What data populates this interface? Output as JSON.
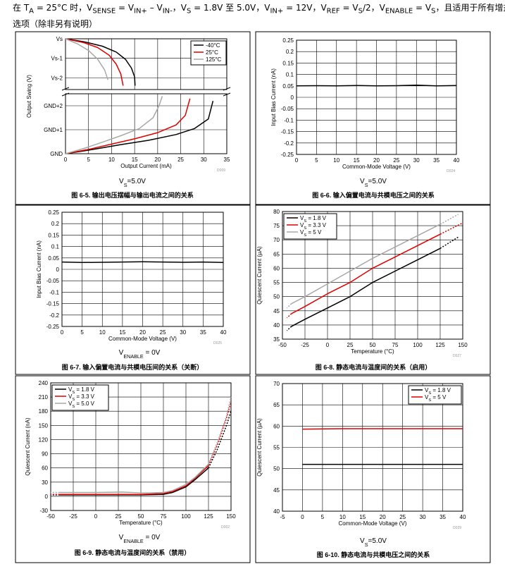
{
  "header": {
    "line1_main": "在 T",
    "line1_main_sub": "A",
    "line1_a": " = 25°C 时，V",
    "line1_a_sub": "SENSE",
    "line1_b": " = V",
    "line1_b_sub": "IN+",
    "line1_c": " – V",
    "line1_c_sub": "IN-",
    "line1_d": "，V",
    "line1_d_sub": "S",
    "line1_e": " = 1.8V 至 5.0V，V",
    "line1_e_sub": "IN+",
    "line1_f": " = 12V，V",
    "line1_f_sub": "REF",
    "line1_g": " = V",
    "line1_g_sub": "S",
    "line1_h": "/2，V",
    "line1_h_sub": "ENABLE",
    "line1_i": " = V",
    "line1_i_sub": "S",
    "line1_j": "，且适用于所有增益",
    "line2": "选项（除非另有说明）"
  },
  "colors": {
    "black": "#000000",
    "red": "#e00000",
    "gray": "#a8a8a8",
    "grid": "#000000"
  },
  "chart_data": [
    {
      "id": "fig-6-5",
      "type": "line",
      "caption": "图 6-5. 输出电压摆幅与输出电流之间的关系",
      "condition": "VS=5.0V",
      "condition_main": "V",
      "condition_sub": "S",
      "condition_rest": "=5.0V",
      "code": "D009",
      "xlabel": "Output Current (mA)",
      "ylabel": "Output Swing (V)",
      "xlim": [
        0,
        35
      ],
      "x_ticks": [
        0,
        5,
        10,
        15,
        20,
        25,
        30,
        35
      ],
      "upper_ticks": [
        "Vs",
        "Vs-1",
        "Vs-2"
      ],
      "lower_ticks": [
        "GND+2",
        "GND+1",
        "GND"
      ],
      "legend": [
        "-40°C",
        "25°C",
        "125°C"
      ],
      "series": [
        {
          "name": "-40°C",
          "color": "black",
          "upper": [
            [
              0,
              0
            ],
            [
              4,
              -0.15
            ],
            [
              8,
              -0.38
            ],
            [
              11,
              -0.68
            ],
            [
              13,
              -1.05
            ],
            [
              14.3,
              -1.5
            ],
            [
              15,
              -1.95
            ],
            [
              15.1,
              -2.4
            ]
          ],
          "lower": [
            [
              0,
              0
            ],
            [
              6,
              0.18
            ],
            [
              12,
              0.38
            ],
            [
              18,
              0.56
            ],
            [
              24,
              0.8
            ],
            [
              28,
              1.05
            ],
            [
              31,
              1.45
            ],
            [
              32,
              2.2
            ]
          ]
        },
        {
          "name": "25°C",
          "color": "red",
          "upper": [
            [
              0,
              0
            ],
            [
              4,
              -0.2
            ],
            [
              7,
              -0.45
            ],
            [
              9.5,
              -0.85
            ],
            [
              11,
              -1.3
            ],
            [
              12,
              -1.8
            ],
            [
              12.5,
              -2.4
            ]
          ],
          "lower": [
            [
              0,
              0
            ],
            [
              5,
              0.18
            ],
            [
              10,
              0.4
            ],
            [
              15,
              0.62
            ],
            [
              20,
              0.88
            ],
            [
              24,
              1.2
            ],
            [
              26,
              1.6
            ],
            [
              27,
              2.3
            ]
          ]
        },
        {
          "name": "125°C",
          "color": "gray",
          "upper": [
            [
              0,
              0
            ],
            [
              2.5,
              -0.25
            ],
            [
              5,
              -0.6
            ],
            [
              7,
              -1.05
            ],
            [
              8.5,
              -1.6
            ],
            [
              9.2,
              -2.1
            ]
          ],
          "lower": [
            [
              0,
              0
            ],
            [
              4,
              0.22
            ],
            [
              8,
              0.48
            ],
            [
              12,
              0.75
            ],
            [
              16,
              1.05
            ],
            [
              19,
              1.5
            ],
            [
              20.3,
              2
            ],
            [
              21,
              2.4
            ]
          ]
        }
      ]
    },
    {
      "id": "fig-6-6",
      "type": "line",
      "caption": "图 6-6. 输入偏置电流与共模电压之间的关系",
      "condition": "VS=5.0V",
      "condition_main": "V",
      "condition_sub": "S",
      "condition_rest": "=5.0V",
      "code": "D024",
      "xlabel": "Common-Mode Voltage (V)",
      "ylabel": "Input Bias Current (nA)",
      "xlim": [
        0,
        40
      ],
      "ylim": [
        -0.25,
        0.25
      ],
      "x_ticks": [
        0,
        5,
        10,
        15,
        20,
        25,
        30,
        35,
        40
      ],
      "y_ticks": [
        0.25,
        0.2,
        0.15,
        0.1,
        0.05,
        0,
        -0.05,
        -0.1,
        -0.15,
        -0.2,
        -0.25
      ],
      "series": [
        {
          "name": "IB",
          "color": "black",
          "points": [
            [
              0,
              0.05
            ],
            [
              5,
              0.051
            ],
            [
              10,
              0.05
            ],
            [
              15,
              0.052
            ],
            [
              20,
              0.05
            ],
            [
              25,
              0.051
            ],
            [
              30,
              0.053
            ],
            [
              35,
              0.05
            ],
            [
              40,
              0.052
            ]
          ]
        }
      ]
    },
    {
      "id": "fig-6-7",
      "type": "line",
      "caption": "图 6-7. 输入偏置电流与共模电压间的关系（关断）",
      "condition": "VENABLE = 0V",
      "condition_main": "V",
      "condition_sub": "ENABLE",
      "condition_rest": " = 0V",
      "code": "D025",
      "xlabel": "Common-Mode Voltage (V)",
      "ylabel": "Input Bias Current (nA)",
      "xlim": [
        0,
        40
      ],
      "ylim": [
        -0.25,
        0.25
      ],
      "x_ticks": [
        0,
        5,
        10,
        15,
        20,
        25,
        30,
        35,
        40
      ],
      "y_ticks": [
        0.25,
        0.2,
        0.15,
        0.1,
        0.05,
        0,
        -0.05,
        -0.1,
        -0.15,
        -0.2,
        -0.25
      ],
      "series": [
        {
          "name": "IB",
          "color": "black",
          "points": [
            [
              0,
              0.032
            ],
            [
              5,
              0.03
            ],
            [
              10,
              0.031
            ],
            [
              15,
              0.032
            ],
            [
              20,
              0.033
            ],
            [
              25,
              0.032
            ],
            [
              30,
              0.031
            ],
            [
              35,
              0.032
            ],
            [
              40,
              0.03
            ]
          ]
        }
      ]
    },
    {
      "id": "fig-6-8",
      "type": "line",
      "caption": "图 6-8. 静态电流与温度间的关系（启用）",
      "code": "D027",
      "xlabel": "Temperature (°C)",
      "ylabel": "Quiescent Current (µA)",
      "xlim": [
        -50,
        150
      ],
      "ylim": [
        35,
        80
      ],
      "x_ticks": [
        -50,
        -25,
        0,
        25,
        50,
        75,
        100,
        125,
        150
      ],
      "y_ticks": [
        80,
        75,
        70,
        65,
        60,
        55,
        50,
        45,
        40,
        35
      ],
      "legend": [
        "VS = 1.8 V",
        "VS = 3.3 V",
        "VS = 5 V"
      ],
      "legend_main": [
        "V",
        "V",
        "V"
      ],
      "legend_sub": [
        "S",
        "S",
        "S"
      ],
      "legend_rest": [
        " = 1.8 V",
        " = 3.3 V",
        " = 5 V"
      ],
      "series": [
        {
          "name": "VS = 1.8 V",
          "color": "black",
          "solid": [
            [
              -40,
              39.5
            ],
            [
              -25,
              42
            ],
            [
              0,
              46
            ],
            [
              25,
              50
            ],
            [
              50,
              55
            ],
            [
              75,
              59
            ],
            [
              100,
              63
            ],
            [
              125,
              67
            ]
          ],
          "dotted_low": [
            [
              -40,
              39.5
            ],
            [
              -45,
              38
            ]
          ],
          "dotted_high": [
            [
              125,
              67
            ],
            [
              145,
              71
            ]
          ]
        },
        {
          "name": "VS = 3.3 V",
          "color": "red",
          "solid": [
            [
              -40,
              44
            ],
            [
              -25,
              46.5
            ],
            [
              0,
              51
            ],
            [
              25,
              55
            ],
            [
              50,
              60
            ],
            [
              75,
              64
            ],
            [
              100,
              68
            ],
            [
              125,
              72
            ]
          ],
          "dotted_low": [
            [
              -40,
              44
            ],
            [
              -45,
              42.5
            ]
          ],
          "dotted_high": [
            [
              125,
              72
            ],
            [
              150,
              76
            ]
          ]
        },
        {
          "name": "VS = 5 V",
          "color": "gray",
          "solid": [
            [
              -40,
              47.5
            ],
            [
              -25,
              50
            ],
            [
              0,
              54.5
            ],
            [
              25,
              59
            ],
            [
              50,
              63.5
            ],
            [
              75,
              67.5
            ],
            [
              100,
              71.5
            ],
            [
              125,
              75.5
            ]
          ],
          "dotted_low": [
            [
              -40,
              47.5
            ],
            [
              -45,
              46
            ]
          ],
          "dotted_high": [
            [
              125,
              75.5
            ],
            [
              145,
              79
            ]
          ]
        }
      ]
    },
    {
      "id": "fig-6-9",
      "type": "line",
      "caption": "图 6-9. 静态电流与温度间的关系（禁用）",
      "condition": "VENABLE = 0V",
      "condition_main": "V",
      "condition_sub": "ENABLE",
      "condition_rest": " = 0V",
      "code": "D002",
      "xlabel": "Temperature (°C)",
      "ylabel": "Quiescent Current (nA)",
      "xlim": [
        -50,
        150
      ],
      "ylim": [
        -30,
        240
      ],
      "x_ticks": [
        -50,
        -25,
        0,
        25,
        50,
        75,
        100,
        125,
        150
      ],
      "y_ticks": [
        240,
        210,
        180,
        150,
        120,
        90,
        60,
        30,
        0,
        -30
      ],
      "legend": [
        "VS = 1.8 V",
        "VS = 3.3 V",
        "VS = 5.0 V"
      ],
      "legend_main": [
        "V",
        "V",
        "V"
      ],
      "legend_sub": [
        "S",
        "S",
        "S"
      ],
      "legend_rest": [
        " = 1.8 V",
        " = 3.3 V",
        " = 5.0 V"
      ],
      "series": [
        {
          "name": "VS = 1.8 V",
          "color": "black",
          "solid": [
            [
              -40,
              3
            ],
            [
              0,
              3
            ],
            [
              50,
              3
            ],
            [
              75,
              4
            ],
            [
              85,
              8
            ],
            [
              100,
              20
            ],
            [
              110,
              35
            ],
            [
              125,
              60
            ]
          ],
          "dotted_low": [
            [
              -40,
              3
            ],
            [
              -50,
              3
            ]
          ],
          "dotted_high": [
            [
              125,
              60
            ],
            [
              135,
              100
            ],
            [
              145,
              150
            ],
            [
              150,
              180
            ]
          ]
        },
        {
          "name": "VS = 3.3 V",
          "color": "red",
          "solid": [
            [
              -40,
              4
            ],
            [
              0,
              4
            ],
            [
              50,
              4
            ],
            [
              75,
              6
            ],
            [
              85,
              10
            ],
            [
              100,
              22
            ],
            [
              110,
              38
            ],
            [
              125,
              65
            ]
          ],
          "dotted_low": [
            [
              -40,
              4
            ],
            [
              -50,
              4
            ]
          ],
          "dotted_high": [
            [
              125,
              65
            ],
            [
              135,
              110
            ],
            [
              145,
              165
            ],
            [
              150,
              200
            ]
          ]
        },
        {
          "name": "VS = 5.0 V",
          "color": "gray",
          "solid": [
            [
              -40,
              8
            ],
            [
              0,
              8
            ],
            [
              30,
              9
            ],
            [
              50,
              7
            ],
            [
              75,
              8
            ],
            [
              85,
              12
            ],
            [
              100,
              25
            ],
            [
              110,
              40
            ],
            [
              125,
              68
            ]
          ],
          "dotted_low": [
            [
              -40,
              8
            ],
            [
              -50,
              8
            ]
          ],
          "dotted_high": [
            [
              125,
              68
            ],
            [
              135,
              115
            ],
            [
              145,
              170
            ],
            [
              150,
              210
            ]
          ]
        }
      ]
    },
    {
      "id": "fig-6-10",
      "type": "line",
      "caption": "图 6-10. 静态电流与共模电压之间的关系",
      "condition": "VS=5.0V",
      "condition_main": "V",
      "condition_sub": "S",
      "condition_rest": "=5.0V",
      "code": "D029",
      "xlabel": "Common-Mode Voltage (V)",
      "ylabel": "Quiescent Current (µA)",
      "xlim": [
        -5,
        40
      ],
      "ylim": [
        40,
        70
      ],
      "x_ticks": [
        -5,
        0,
        5,
        10,
        15,
        20,
        25,
        30,
        35,
        40
      ],
      "y_ticks": [
        70,
        65,
        60,
        55,
        50,
        45,
        40
      ],
      "legend": [
        "VS = 1.8 V",
        "VS = 5 V"
      ],
      "legend_main": [
        "V",
        "V"
      ],
      "legend_sub": [
        "S",
        "S"
      ],
      "legend_rest": [
        " = 1.8 V",
        " = 5 V"
      ],
      "series": [
        {
          "name": "VS = 1.8 V",
          "color": "black",
          "points": [
            [
              0,
              51
            ],
            [
              10,
              51
            ],
            [
              20,
              51
            ],
            [
              30,
              51
            ],
            [
              40,
              51
            ]
          ]
        },
        {
          "name": "VS = 5 V",
          "color": "red",
          "points": [
            [
              0,
              59.3
            ],
            [
              10,
              59.4
            ],
            [
              20,
              59.4
            ],
            [
              30,
              59.4
            ],
            [
              40,
              59.4
            ]
          ]
        }
      ]
    }
  ]
}
